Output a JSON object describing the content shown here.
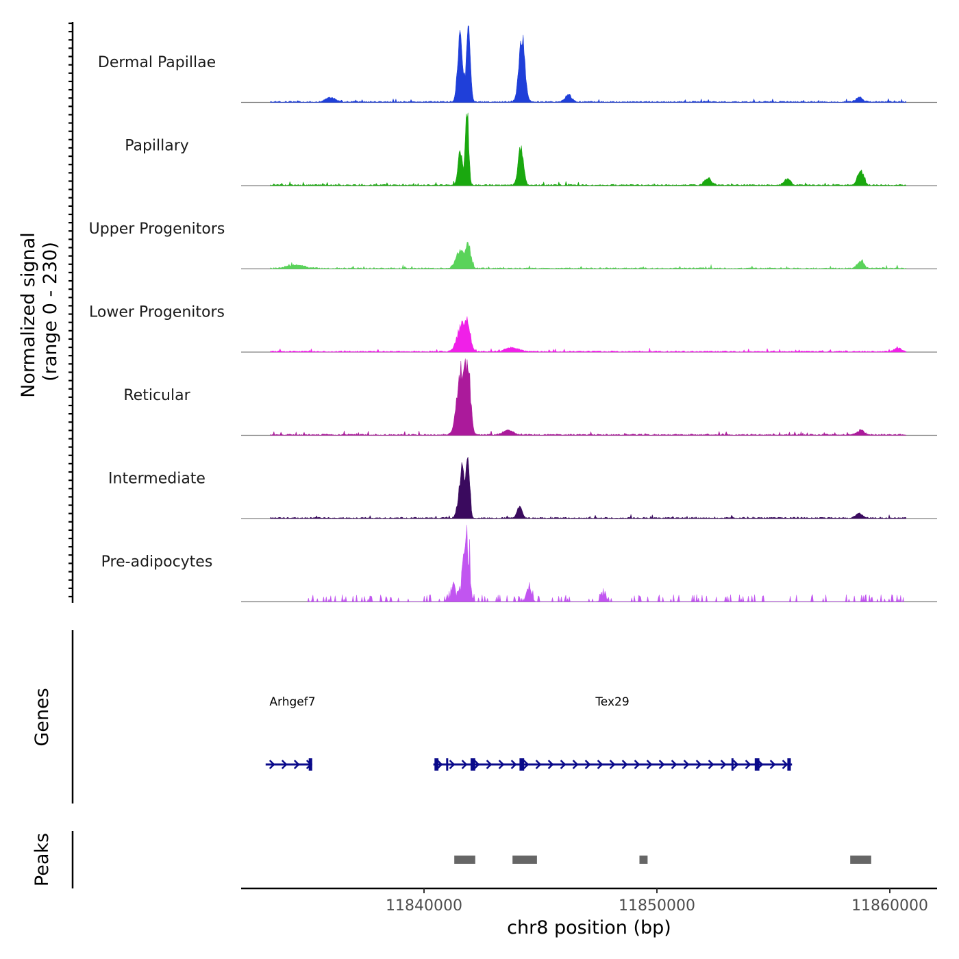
{
  "chart_data": {
    "type": "area",
    "y_axis_title": "Normalized signal",
    "y_axis_subtitle": "(range 0 - 230)",
    "y_range": [
      0,
      230
    ],
    "x_axis_title": "chr8 position (bp)",
    "x_range": [
      11832000,
      11862000
    ],
    "x_ticks": [
      11840000,
      11850000,
      11860000
    ],
    "x_tick_labels": [
      "11840000",
      "11850000",
      "11860000"
    ],
    "tracks": [
      {
        "name": "Dermal Papillae",
        "color": "#1f3fd9",
        "range": [
          11833400,
          11860700
        ],
        "peaks": [
          [
            11841550,
            205,
            150
          ],
          [
            11841900,
            210,
            120
          ],
          [
            11844200,
            195,
            180
          ],
          [
            11836000,
            12,
            300
          ],
          [
            11846200,
            20,
            200
          ],
          [
            11858700,
            15,
            200
          ]
        ]
      },
      {
        "name": "Papillary",
        "color": "#1aa80f",
        "range": [
          11833400,
          11860700
        ],
        "peaks": [
          [
            11841550,
            115,
            120
          ],
          [
            11841850,
            230,
            100
          ],
          [
            11844150,
            115,
            160
          ],
          [
            11852200,
            22,
            200
          ],
          [
            11855600,
            18,
            200
          ],
          [
            11858750,
            42,
            180
          ]
        ]
      },
      {
        "name": "Upper Progenitors",
        "color": "#5ad35a",
        "range": [
          11833400,
          11860700
        ],
        "peaks": [
          [
            11841550,
            55,
            250
          ],
          [
            11841900,
            70,
            150
          ],
          [
            11834500,
            10,
            500
          ],
          [
            11858750,
            22,
            200
          ]
        ]
      },
      {
        "name": "Lower Progenitors",
        "color": "#f020e8",
        "range": [
          11833400,
          11860700
        ],
        "peaks": [
          [
            11841600,
            80,
            250
          ],
          [
            11841900,
            70,
            150
          ],
          [
            11843800,
            12,
            400
          ],
          [
            11860350,
            12,
            200
          ]
        ]
      },
      {
        "name": "Reticular",
        "color": "#ab1a9b",
        "range": [
          11833400,
          11860700
        ],
        "peaks": [
          [
            11841600,
            200,
            250
          ],
          [
            11841900,
            170,
            150
          ],
          [
            11843600,
            14,
            300
          ],
          [
            11858750,
            15,
            200
          ]
        ]
      },
      {
        "name": "Intermediate",
        "color": "#3a0a5e",
        "range": [
          11833400,
          11860700
        ],
        "peaks": [
          [
            11841650,
            150,
            200
          ],
          [
            11841900,
            170,
            100
          ],
          [
            11844100,
            35,
            150
          ],
          [
            11858700,
            15,
            200
          ]
        ]
      },
      {
        "name": "Pre-adipocytes",
        "color": "#c155f0",
        "range": [
          11835000,
          11860600
        ],
        "peaks": [
          [
            11841900,
            230,
            120
          ],
          [
            11841700,
            120,
            150
          ],
          [
            11841300,
            40,
            200
          ],
          [
            11844500,
            45,
            150
          ],
          [
            11847700,
            40,
            150
          ]
        ]
      }
    ],
    "genes_label": "Genes",
    "genes": [
      {
        "name": "Arhgef7",
        "start": 11833200,
        "end": 11835200,
        "strand": "+",
        "exons": [
          [
            11835050,
            11835200
          ]
        ]
      },
      {
        "name": "Tex29",
        "start": 11840400,
        "end": 11855800,
        "strand": "+",
        "exons": [
          [
            11840450,
            11840620
          ],
          [
            11840950,
            11841020
          ],
          [
            11842000,
            11842200
          ],
          [
            11844100,
            11844300
          ],
          [
            11853200,
            11853260
          ],
          [
            11854200,
            11854400
          ],
          [
            11855600,
            11855750
          ]
        ]
      }
    ],
    "peaks_label": "Peaks",
    "peak_regions": [
      [
        11841300,
        11842200
      ],
      [
        11843800,
        11844850
      ],
      [
        11849250,
        11849600
      ],
      [
        11858300,
        11859200
      ]
    ]
  }
}
